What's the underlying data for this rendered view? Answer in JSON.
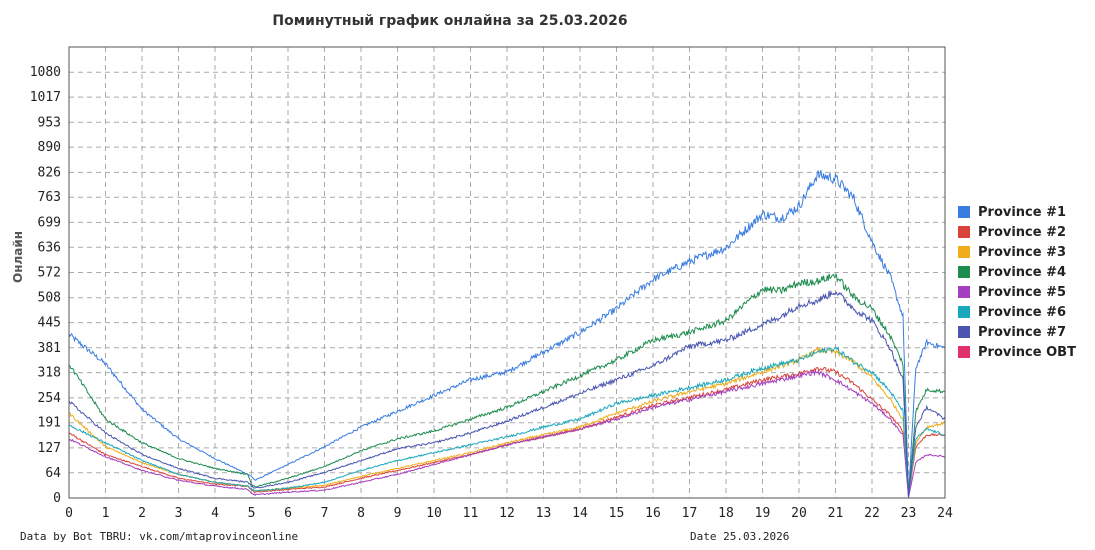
{
  "title": "Поминутный график онлайна за 25.03.2026",
  "footer": {
    "source": "Data by Bot TBRU: vk.com/mtaprovinceonline",
    "date": "Date 25.03.2026"
  },
  "chart_data": {
    "type": "line",
    "title": "Поминутный график онлайна за 25.03.2026",
    "xlabel": "",
    "ylabel": "Онлайн",
    "xlim": [
      0,
      24
    ],
    "ylim": [
      0,
      1144
    ],
    "x_ticks": [
      0,
      1,
      2,
      3,
      4,
      5,
      6,
      7,
      8,
      9,
      10,
      11,
      12,
      13,
      14,
      15,
      16,
      17,
      18,
      19,
      20,
      21,
      22,
      23,
      24
    ],
    "y_ticks": [
      0,
      64,
      127,
      191,
      254,
      318,
      381,
      445,
      508,
      572,
      636,
      699,
      763,
      826,
      890,
      953,
      1017,
      1080
    ],
    "grid": true,
    "legend_position": "right",
    "series": [
      {
        "name": "Province #1",
        "color": "#3a7de0",
        "points": [
          [
            0,
            415
          ],
          [
            1,
            340
          ],
          [
            2,
            225
          ],
          [
            3,
            150
          ],
          [
            4,
            100
          ],
          [
            4.9,
            60
          ],
          [
            5,
            55
          ],
          [
            5.1,
            45
          ],
          [
            6,
            85
          ],
          [
            7,
            130
          ],
          [
            8,
            180
          ],
          [
            9,
            220
          ],
          [
            10,
            260
          ],
          [
            11,
            300
          ],
          [
            12,
            320
          ],
          [
            13,
            370
          ],
          [
            14,
            420
          ],
          [
            15,
            480
          ],
          [
            16,
            555
          ],
          [
            17,
            600
          ],
          [
            18,
            635
          ],
          [
            19,
            720
          ],
          [
            19.5,
            710
          ],
          [
            20,
            740
          ],
          [
            20.5,
            820
          ],
          [
            21,
            810
          ],
          [
            21.5,
            760
          ],
          [
            22,
            650
          ],
          [
            22.5,
            560
          ],
          [
            22.85,
            460
          ],
          [
            23,
            5
          ],
          [
            23.2,
            330
          ],
          [
            23.5,
            395
          ],
          [
            24,
            380
          ]
        ]
      },
      {
        "name": "Province #2",
        "color": "#d9433a",
        "points": [
          [
            0,
            165
          ],
          [
            1,
            110
          ],
          [
            2,
            80
          ],
          [
            3,
            50
          ],
          [
            4,
            35
          ],
          [
            4.9,
            30
          ],
          [
            5,
            20
          ],
          [
            5.1,
            15
          ],
          [
            6,
            22
          ],
          [
            7,
            28
          ],
          [
            8,
            50
          ],
          [
            9,
            70
          ],
          [
            10,
            90
          ],
          [
            11,
            110
          ],
          [
            12,
            135
          ],
          [
            13,
            155
          ],
          [
            14,
            175
          ],
          [
            15,
            205
          ],
          [
            16,
            235
          ],
          [
            17,
            255
          ],
          [
            18,
            275
          ],
          [
            19,
            300
          ],
          [
            20,
            315
          ],
          [
            20.5,
            330
          ],
          [
            21,
            320
          ],
          [
            21.5,
            290
          ],
          [
            22,
            250
          ],
          [
            22.5,
            210
          ],
          [
            22.85,
            170
          ],
          [
            23,
            3
          ],
          [
            23.2,
            130
          ],
          [
            23.5,
            160
          ],
          [
            24,
            160
          ]
        ]
      },
      {
        "name": "Province #3",
        "color": "#f0ad1a",
        "points": [
          [
            0,
            215
          ],
          [
            1,
            130
          ],
          [
            2,
            90
          ],
          [
            3,
            60
          ],
          [
            4,
            40
          ],
          [
            4.9,
            30
          ],
          [
            5,
            22
          ],
          [
            5.1,
            18
          ],
          [
            6,
            25
          ],
          [
            7,
            32
          ],
          [
            8,
            55
          ],
          [
            9,
            75
          ],
          [
            10,
            95
          ],
          [
            11,
            115
          ],
          [
            12,
            140
          ],
          [
            13,
            160
          ],
          [
            14,
            180
          ],
          [
            15,
            215
          ],
          [
            16,
            245
          ],
          [
            17,
            270
          ],
          [
            18,
            290
          ],
          [
            19,
            320
          ],
          [
            20,
            350
          ],
          [
            20.5,
            375
          ],
          [
            21,
            370
          ],
          [
            21.5,
            345
          ],
          [
            22,
            305
          ],
          [
            22.5,
            250
          ],
          [
            22.85,
            200
          ],
          [
            23,
            3
          ],
          [
            23.2,
            140
          ],
          [
            23.5,
            180
          ],
          [
            24,
            190
          ]
        ]
      },
      {
        "name": "Province #4",
        "color": "#1e8c4e",
        "points": [
          [
            0,
            340
          ],
          [
            1,
            200
          ],
          [
            2,
            140
          ],
          [
            3,
            100
          ],
          [
            4,
            75
          ],
          [
            4.9,
            60
          ],
          [
            5,
            35
          ],
          [
            5.1,
            28
          ],
          [
            6,
            50
          ],
          [
            7,
            80
          ],
          [
            8,
            120
          ],
          [
            9,
            150
          ],
          [
            10,
            170
          ],
          [
            11,
            200
          ],
          [
            12,
            230
          ],
          [
            13,
            270
          ],
          [
            14,
            310
          ],
          [
            15,
            350
          ],
          [
            16,
            400
          ],
          [
            17,
            420
          ],
          [
            18,
            450
          ],
          [
            19,
            530
          ],
          [
            19.5,
            525
          ],
          [
            20,
            545
          ],
          [
            20.5,
            550
          ],
          [
            21,
            565
          ],
          [
            21.5,
            510
          ],
          [
            22,
            480
          ],
          [
            22.5,
            410
          ],
          [
            22.85,
            340
          ],
          [
            23,
            4
          ],
          [
            23.2,
            220
          ],
          [
            23.5,
            275
          ],
          [
            24,
            270
          ]
        ]
      },
      {
        "name": "Province #5",
        "color": "#a43fc0",
        "points": [
          [
            0,
            150
          ],
          [
            1,
            105
          ],
          [
            2,
            70
          ],
          [
            3,
            45
          ],
          [
            4,
            30
          ],
          [
            4.9,
            22
          ],
          [
            5,
            12
          ],
          [
            5.1,
            8
          ],
          [
            6,
            15
          ],
          [
            7,
            20
          ],
          [
            8,
            40
          ],
          [
            9,
            60
          ],
          [
            10,
            85
          ],
          [
            11,
            110
          ],
          [
            12,
            135
          ],
          [
            13,
            155
          ],
          [
            14,
            175
          ],
          [
            15,
            200
          ],
          [
            16,
            230
          ],
          [
            17,
            250
          ],
          [
            18,
            270
          ],
          [
            19,
            290
          ],
          [
            20,
            310
          ],
          [
            20.5,
            320
          ],
          [
            21,
            300
          ],
          [
            21.5,
            270
          ],
          [
            22,
            240
          ],
          [
            22.5,
            200
          ],
          [
            22.85,
            160
          ],
          [
            23,
            2
          ],
          [
            23.2,
            90
          ],
          [
            23.5,
            110
          ],
          [
            24,
            105
          ]
        ]
      },
      {
        "name": "Province #6",
        "color": "#1aa8bd",
        "points": [
          [
            0,
            185
          ],
          [
            1,
            140
          ],
          [
            2,
            95
          ],
          [
            3,
            60
          ],
          [
            4,
            40
          ],
          [
            4.9,
            30
          ],
          [
            5,
            22
          ],
          [
            5.1,
            18
          ],
          [
            6,
            25
          ],
          [
            7,
            40
          ],
          [
            8,
            70
          ],
          [
            9,
            95
          ],
          [
            10,
            115
          ],
          [
            11,
            135
          ],
          [
            12,
            155
          ],
          [
            13,
            180
          ],
          [
            14,
            200
          ],
          [
            15,
            240
          ],
          [
            16,
            260
          ],
          [
            17,
            280
          ],
          [
            18,
            300
          ],
          [
            19,
            330
          ],
          [
            20,
            350
          ],
          [
            20.5,
            370
          ],
          [
            21,
            380
          ],
          [
            21.5,
            345
          ],
          [
            22,
            320
          ],
          [
            22.5,
            270
          ],
          [
            22.85,
            220
          ],
          [
            23,
            3
          ],
          [
            23.2,
            150
          ],
          [
            23.5,
            175
          ],
          [
            24,
            160
          ]
        ]
      },
      {
        "name": "Province #7",
        "color": "#4a55b0",
        "points": [
          [
            0,
            245
          ],
          [
            1,
            165
          ],
          [
            2,
            110
          ],
          [
            3,
            75
          ],
          [
            4,
            50
          ],
          [
            4.9,
            40
          ],
          [
            5,
            30
          ],
          [
            5.1,
            25
          ],
          [
            6,
            40
          ],
          [
            7,
            65
          ],
          [
            8,
            95
          ],
          [
            9,
            125
          ],
          [
            10,
            140
          ],
          [
            11,
            165
          ],
          [
            12,
            195
          ],
          [
            13,
            230
          ],
          [
            14,
            265
          ],
          [
            15,
            300
          ],
          [
            16,
            335
          ],
          [
            17,
            385
          ],
          [
            18,
            400
          ],
          [
            19,
            440
          ],
          [
            19.5,
            460
          ],
          [
            20,
            490
          ],
          [
            20.5,
            500
          ],
          [
            21,
            525
          ],
          [
            21.5,
            480
          ],
          [
            22,
            450
          ],
          [
            22.5,
            380
          ],
          [
            22.85,
            300
          ],
          [
            23,
            4
          ],
          [
            23.2,
            180
          ],
          [
            23.5,
            230
          ],
          [
            24,
            200
          ]
        ]
      },
      {
        "name": "Province OBT",
        "color": "#e0306e",
        "points": []
      }
    ]
  }
}
